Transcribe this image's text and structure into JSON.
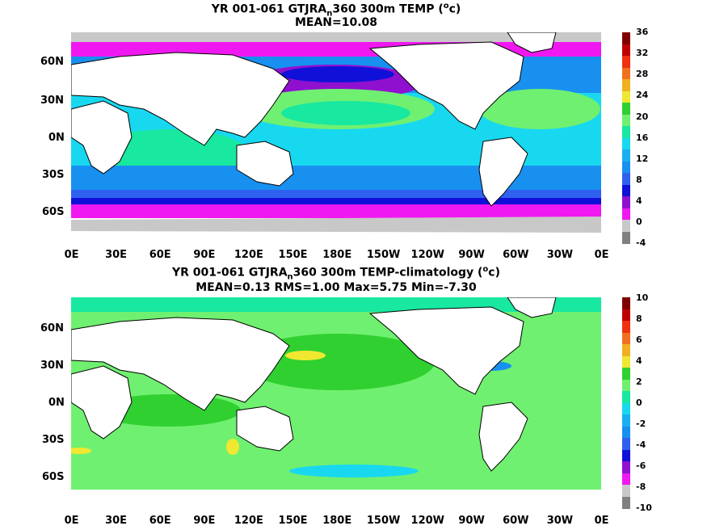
{
  "panel1": {
    "title_line1_pre": "YR 001-061 GTJRA",
    "title_line1_sub": "n",
    "title_line1_post": "360 300m TEMP (",
    "title_sup": "o",
    "title_unit_tail": "c)",
    "title_line2": "MEAN=10.08",
    "colorbar_labels": [
      "36",
      "32",
      "28",
      "24",
      "20",
      "16",
      "12",
      "8",
      "4",
      "0",
      "-4"
    ]
  },
  "panel2": {
    "title_line1_pre": "YR 001-061 GTJRA",
    "title_line1_sub": "n",
    "title_line1_post": "360 300m TEMP-climatology (",
    "title_sup": "o",
    "title_unit_tail": "c)",
    "title_line2": "MEAN=0.13   RMS=1.00   Max=5.75   Min=-7.30",
    "colorbar_labels": [
      "10",
      "8",
      "6",
      "4",
      "2",
      "0",
      "-2",
      "-4",
      "-6",
      "-8",
      "-10"
    ]
  },
  "lat_labels": [
    "60N",
    "30N",
    "0N",
    "30S",
    "60S"
  ],
  "lon_labels": [
    "0E",
    "30E",
    "60E",
    "90E",
    "120E",
    "150E",
    "180E",
    "150W",
    "120W",
    "90W",
    "60W",
    "30W",
    "0E"
  ],
  "colors": {
    "land": "#ffffff",
    "coastline": "#000000",
    "ocean_cyan": "#18d8f0",
    "ocean_blue_mid": "#1890f0",
    "ocean_blue": "#3060f0",
    "ocean_navy": "#1010d8",
    "purple": "#9010d0",
    "magenta": "#f018f0",
    "green_light": "#70f070",
    "green_teal": "#18e8a0",
    "green": "#30d030",
    "yellow": "#f0e830",
    "orange": "#f09020",
    "gray_ice": "#c8c8c8"
  },
  "colorbar1": [
    "#800000",
    "#c00000",
    "#f03010",
    "#f07020",
    "#f0b020",
    "#f0e830",
    "#30d030",
    "#70f070",
    "#18e8a0",
    "#18d8f0",
    "#18b0f0",
    "#1890f0",
    "#3060f0",
    "#1010d8",
    "#9010d0",
    "#f018f0",
    "#c8c8c8",
    "#808080"
  ],
  "colorbar2": [
    "#800000",
    "#c00000",
    "#f03010",
    "#f07020",
    "#f0b020",
    "#f0e830",
    "#30d030",
    "#70f070",
    "#18e8a0",
    "#18d8f0",
    "#18b0f0",
    "#1890f0",
    "#3060f0",
    "#1010d8",
    "#9010d0",
    "#f018f0",
    "#c8c8c8",
    "#808080"
  ]
}
